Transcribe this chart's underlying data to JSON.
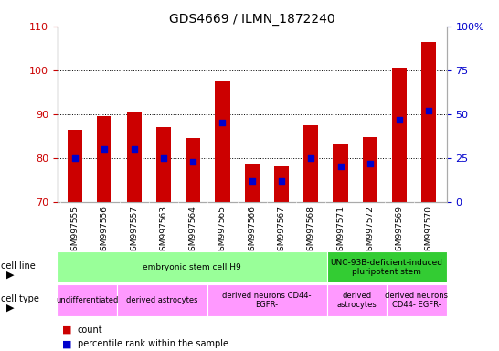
{
  "title": "GDS4669 / ILMN_1872240",
  "samples": [
    "GSM997555",
    "GSM997556",
    "GSM997557",
    "GSM997563",
    "GSM997564",
    "GSM997565",
    "GSM997566",
    "GSM997567",
    "GSM997568",
    "GSM997571",
    "GSM997572",
    "GSM997569",
    "GSM997570"
  ],
  "count_values": [
    86.5,
    89.5,
    90.5,
    87.0,
    84.5,
    97.5,
    78.8,
    78.0,
    87.5,
    83.0,
    84.8,
    100.5,
    106.5
  ],
  "percentile_values": [
    25,
    30,
    30,
    25,
    23,
    45,
    12,
    12,
    25,
    20,
    22,
    47,
    52
  ],
  "ylim_left": [
    70,
    110
  ],
  "ylim_right": [
    0,
    100
  ],
  "yticks_left": [
    70,
    80,
    90,
    100,
    110
  ],
  "yticks_right": [
    0,
    25,
    50,
    75,
    100
  ],
  "bar_color": "#cc0000",
  "marker_color": "#0000cc",
  "bar_width": 0.5,
  "cell_line_groups": [
    {
      "label": "embryonic stem cell H9",
      "start": 0,
      "end": 9,
      "color": "#99ff99"
    },
    {
      "label": "UNC-93B-deficient-induced\npluripotent stem",
      "start": 9,
      "end": 13,
      "color": "#33cc33"
    }
  ],
  "cell_type_groups": [
    {
      "label": "undifferentiated",
      "start": 0,
      "end": 2,
      "color": "#ff99ff"
    },
    {
      "label": "derived astrocytes",
      "start": 2,
      "end": 5,
      "color": "#ff99ff"
    },
    {
      "label": "derived neurons CD44-\nEGFR-",
      "start": 5,
      "end": 9,
      "color": "#ff99ff"
    },
    {
      "label": "derived\nastrocytes",
      "start": 9,
      "end": 11,
      "color": "#ff99ff"
    },
    {
      "label": "derived neurons\nCD44- EGFR-",
      "start": 11,
      "end": 13,
      "color": "#ff99ff"
    }
  ],
  "title_fontsize": 10,
  "tick_label_color_left": "#cc0000",
  "tick_label_color_right": "#0000cc",
  "bar_color_legend": "#cc0000",
  "marker_color_legend": "#0000cc",
  "plot_bg_color": "#ffffff"
}
